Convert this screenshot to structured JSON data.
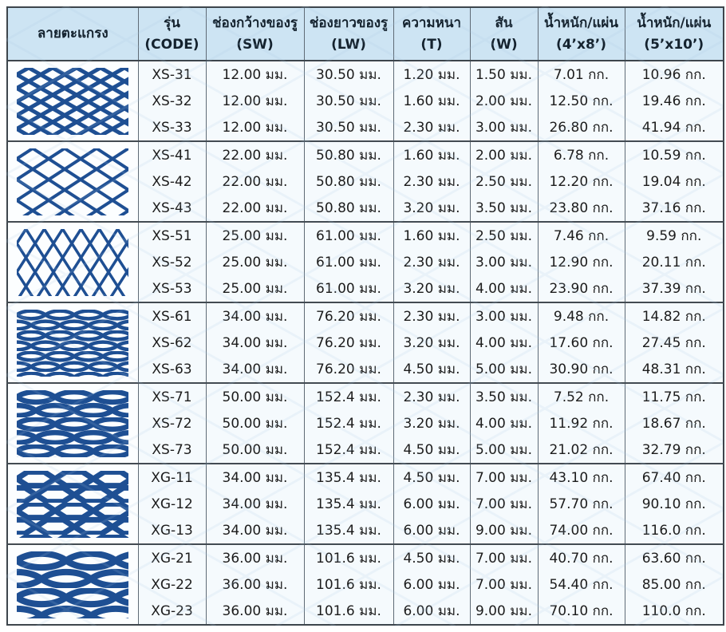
{
  "table": {
    "headers": [
      {
        "line1": "ลายตะแกรง",
        "line2": ""
      },
      {
        "line1": "รุ่น",
        "line2": "(CODE)"
      },
      {
        "line1": "ช่องกว้างของรู",
        "line2": "(SW)"
      },
      {
        "line1": "ช่องยาวของรู",
        "line2": "(LW)"
      },
      {
        "line1": "ความหนา",
        "line2": "(T)"
      },
      {
        "line1": "สัน",
        "line2": "(W)"
      },
      {
        "line1": "น้ำหนัก/แผ่น",
        "line2": "(4’x8’)"
      },
      {
        "line1": "น้ำหนัก/แผ่น",
        "line2": "(5’x10’)"
      }
    ],
    "groups": [
      {
        "pattern": "diamond-fine",
        "rows": [
          [
            "XS-31",
            "12.00 มม.",
            "30.50 มม.",
            "1.20 มม.",
            "1.50 มม.",
            "7.01 กก.",
            "10.96 กก."
          ],
          [
            "XS-32",
            "12.00 มม.",
            "30.50 มม.",
            "1.60 มม.",
            "2.00 มม.",
            "12.50 กก.",
            "19.46 กก."
          ],
          [
            "XS-33",
            "12.00 มม.",
            "30.50 มม.",
            "2.30 มม.",
            "3.00 มม.",
            "26.80 กก.",
            "41.94 กก."
          ]
        ]
      },
      {
        "pattern": "diamond-large",
        "rows": [
          [
            "XS-41",
            "22.00 มม.",
            "50.80 มม.",
            "1.60 มม.",
            "2.00 มม.",
            "6.78 กก.",
            "10.59 กก."
          ],
          [
            "XS-42",
            "22.00 มม.",
            "50.80 มม.",
            "2.30 มม.",
            "2.50 มม.",
            "12.20 กก.",
            "19.04 กก."
          ],
          [
            "XS-43",
            "22.00 มม.",
            "50.80 มม.",
            "3.20 มม.",
            "3.50 มม.",
            "23.80 กก.",
            "37.16 กก."
          ]
        ]
      },
      {
        "pattern": "diamond-tall",
        "rows": [
          [
            "XS-51",
            "25.00 มม.",
            "61.00 มม.",
            "1.60 มม.",
            "2.50 มม.",
            "7.46 กก.",
            "9.59 กก."
          ],
          [
            "XS-52",
            "25.00 มม.",
            "61.00 มม.",
            "2.30 มม.",
            "3.00 มม.",
            "12.90 กก.",
            "20.11 กก."
          ],
          [
            "XS-53",
            "25.00 มม.",
            "61.00 มม.",
            "3.20 มม.",
            "4.00 มม.",
            "23.90 กก.",
            "37.39 กก."
          ]
        ]
      },
      {
        "pattern": "lens-fine",
        "rows": [
          [
            "XS-61",
            "34.00 มม.",
            "76.20 มม.",
            "2.30 มม.",
            "3.00 มม.",
            "9.48 กก.",
            "14.82 กก."
          ],
          [
            "XS-62",
            "34.00 มม.",
            "76.20 มม.",
            "3.20 มม.",
            "4.00 มม.",
            "17.60 กก.",
            "27.45 กก."
          ],
          [
            "XS-63",
            "34.00 มม.",
            "76.20 มม.",
            "4.50 มม.",
            "5.00 มม.",
            "30.90 กก.",
            "48.31 กก."
          ]
        ]
      },
      {
        "pattern": "lens-medium",
        "rows": [
          [
            "XS-71",
            "50.00 มม.",
            "152.4 มม.",
            "2.30 มม.",
            "3.50 มม.",
            "7.52 กก.",
            "11.75 กก."
          ],
          [
            "XS-72",
            "50.00 มม.",
            "152.4 มม.",
            "3.20 มม.",
            "4.00 มม.",
            "11.92 กก.",
            "18.67 กก."
          ],
          [
            "XS-73",
            "50.00 มม.",
            "152.4 มม.",
            "4.50 มม.",
            "5.00 มม.",
            "21.02 กก.",
            "32.79 กก."
          ]
        ]
      },
      {
        "pattern": "hex-large",
        "rows": [
          [
            "XG-11",
            "34.00 มม.",
            "135.4 มม.",
            "4.50 มม.",
            "7.00 มม.",
            "43.10 กก.",
            "67.40 กก."
          ],
          [
            "XG-12",
            "34.00 มม.",
            "135.4 มม.",
            "6.00 มม.",
            "7.00 มม.",
            "57.70 กก.",
            "90.10 กก."
          ],
          [
            "XG-13",
            "34.00 มม.",
            "135.4 มม.",
            "6.00 มม.",
            "9.00 มม.",
            "74.00 กก.",
            "116.0 กก."
          ]
        ]
      },
      {
        "pattern": "lens-large",
        "rows": [
          [
            "XG-21",
            "36.00 มม.",
            "101.6 มม.",
            "4.50 มม.",
            "7.00 มม.",
            "40.70 กก.",
            "63.60 กก."
          ],
          [
            "XG-22",
            "36.00 มม.",
            "101.6 มม.",
            "6.00 มม.",
            "7.00 มม.",
            "54.40 กก.",
            "85.00 กก."
          ],
          [
            "XG-23",
            "36.00 มม.",
            "101.6 มม.",
            "6.00 มม.",
            "9.00 มม.",
            "70.10 กก.",
            "110.0 กก."
          ]
        ]
      }
    ]
  },
  "colors": {
    "mesh_blue": "#1e4f93",
    "header_bg": "#cde4f3",
    "cell_bg": "#f5fafd",
    "border_dark": "#3d454c",
    "border_light": "#5f6b76",
    "watermark_blue": "#a9c9e4"
  }
}
